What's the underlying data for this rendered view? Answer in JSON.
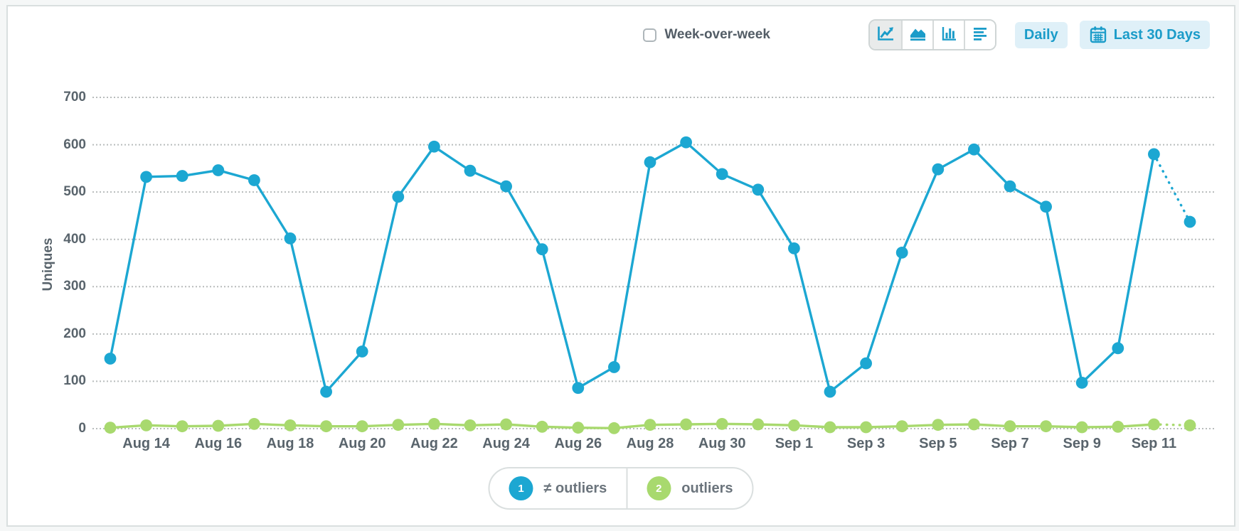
{
  "toolbar": {
    "week_over_week_label": "Week-over-week",
    "chart_types": [
      "line",
      "area",
      "bar",
      "summary"
    ],
    "selected_chart_type": "line",
    "daily_label": "Daily",
    "date_range_label": "Last 30 Days"
  },
  "colors": {
    "accent_blue": "#1b9cc9",
    "button_bg": "#dff0f8",
    "grid": "#b8bcbc",
    "axis_text": "#59646c",
    "series_blue": "#1ca7d2",
    "series_green": "#a8d96e"
  },
  "chart_data": {
    "type": "line",
    "title": "",
    "xlabel": "",
    "ylabel": "Uniques",
    "ylim": [
      0,
      700
    ],
    "y_ticks": [
      0,
      100,
      200,
      300,
      400,
      500,
      600,
      700
    ],
    "grid": "dotted-horizontal",
    "legend_position": "bottom",
    "x": [
      "Aug 13",
      "Aug 14",
      "Aug 15",
      "Aug 16",
      "Aug 17",
      "Aug 18",
      "Aug 19",
      "Aug 20",
      "Aug 21",
      "Aug 22",
      "Aug 23",
      "Aug 24",
      "Aug 25",
      "Aug 26",
      "Aug 27",
      "Aug 28",
      "Aug 29",
      "Aug 30",
      "Aug 31",
      "Sep 1",
      "Sep 2",
      "Sep 3",
      "Sep 4",
      "Sep 5",
      "Sep 6",
      "Sep 7",
      "Sep 8",
      "Sep 9",
      "Sep 10",
      "Sep 11",
      "Sep 12"
    ],
    "x_tick_labels": [
      "Aug 14",
      "Aug 16",
      "Aug 18",
      "Aug 20",
      "Aug 22",
      "Aug 24",
      "Aug 26",
      "Aug 28",
      "Aug 30",
      "Sep 1",
      "Sep 3",
      "Sep 5",
      "Sep 7",
      "Sep 9",
      "Sep 11"
    ],
    "series": [
      {
        "name": "≠ outliers",
        "legend_number": "1",
        "color": "#1ca7d2",
        "trailing_dotted": true,
        "values": [
          148,
          532,
          534,
          546,
          525,
          402,
          78,
          163,
          490,
          596,
          545,
          512,
          379,
          86,
          130,
          563,
          605,
          538,
          505,
          381,
          78,
          138,
          372,
          548,
          590,
          512,
          469,
          97,
          170,
          580,
          437
        ]
      },
      {
        "name": "outliers",
        "legend_number": "2",
        "color": "#a8d96e",
        "trailing_dotted": true,
        "values": [
          2,
          7,
          5,
          6,
          10,
          7,
          5,
          5,
          8,
          10,
          7,
          9,
          4,
          2,
          1,
          8,
          9,
          10,
          9,
          7,
          3,
          3,
          5,
          8,
          9,
          5,
          5,
          3,
          4,
          9,
          7
        ]
      }
    ]
  }
}
